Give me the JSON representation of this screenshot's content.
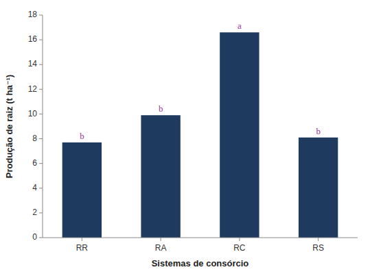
{
  "chart_data": {
    "type": "bar",
    "categories": [
      "RR",
      "RA",
      "RC",
      "RS"
    ],
    "values": [
      7.7,
      9.9,
      16.6,
      8.1
    ],
    "color": "#1e3a5f",
    "annotations": [
      {
        "text": "b",
        "color": "#993399"
      },
      {
        "text": "b",
        "color": "#993399"
      },
      {
        "text": "a",
        "color": "#993399"
      },
      {
        "text": "b",
        "color": "#993399"
      }
    ],
    "xlabel": "Sistemas de consórcio",
    "ylabel": "Produção de raiz (t ha⁻¹)",
    "ylim": [
      0,
      18
    ],
    "yticks": [
      0,
      2,
      4,
      6,
      8,
      10,
      12,
      14,
      16,
      18
    ],
    "grid": false
  }
}
